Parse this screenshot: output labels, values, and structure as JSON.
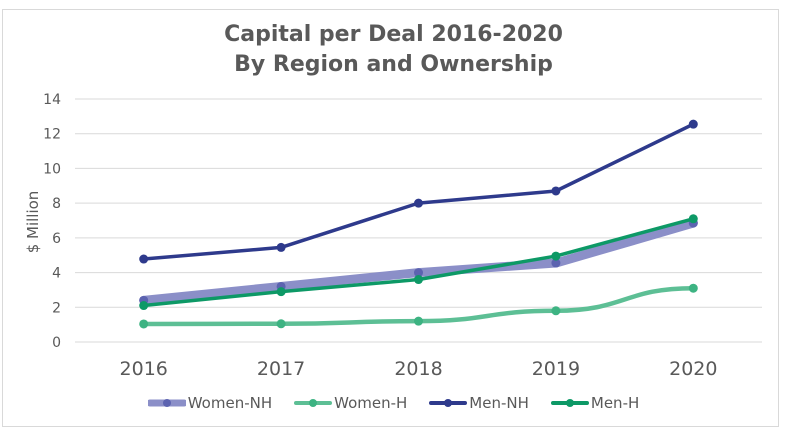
{
  "chart_data": {
    "type": "line",
    "title": [
      "Capital per Deal 2016-2020",
      "By Region and Ownership"
    ],
    "xlabel": "",
    "ylabel": "$ Million",
    "categories": [
      "2016",
      "2017",
      "2018",
      "2019",
      "2020"
    ],
    "ylim": [
      0,
      14
    ],
    "yticks": [
      "0",
      "2",
      "4",
      "6",
      "8",
      "10",
      "12",
      "14"
    ],
    "grid": true,
    "legend_position": "bottom",
    "series": [
      {
        "name": "Women-NH",
        "values": [
          2.4,
          3.2,
          4.0,
          4.55,
          6.85
        ],
        "color": "#8b8fc8",
        "marker_color": "#5c63b0",
        "thick": true
      },
      {
        "name": "Women-H",
        "values": [
          1.04,
          1.05,
          1.2,
          1.8,
          3.1
        ],
        "color": "#5dbf95",
        "marker_color": "#3db382",
        "thick": false
      },
      {
        "name": "Men-NH",
        "values": [
          4.78,
          5.45,
          8.0,
          8.7,
          12.55
        ],
        "color": "#2e3a8c",
        "marker_color": "#2e3a8c",
        "thick": false
      },
      {
        "name": "Men-H",
        "values": [
          2.1,
          2.9,
          3.6,
          4.95,
          7.1
        ],
        "color": "#0d9966",
        "marker_color": "#0d9966",
        "thick": false
      }
    ]
  },
  "colors": {
    "text": "#595959",
    "grid": "#d9d9d9",
    "frame": "#d9d9d9"
  }
}
